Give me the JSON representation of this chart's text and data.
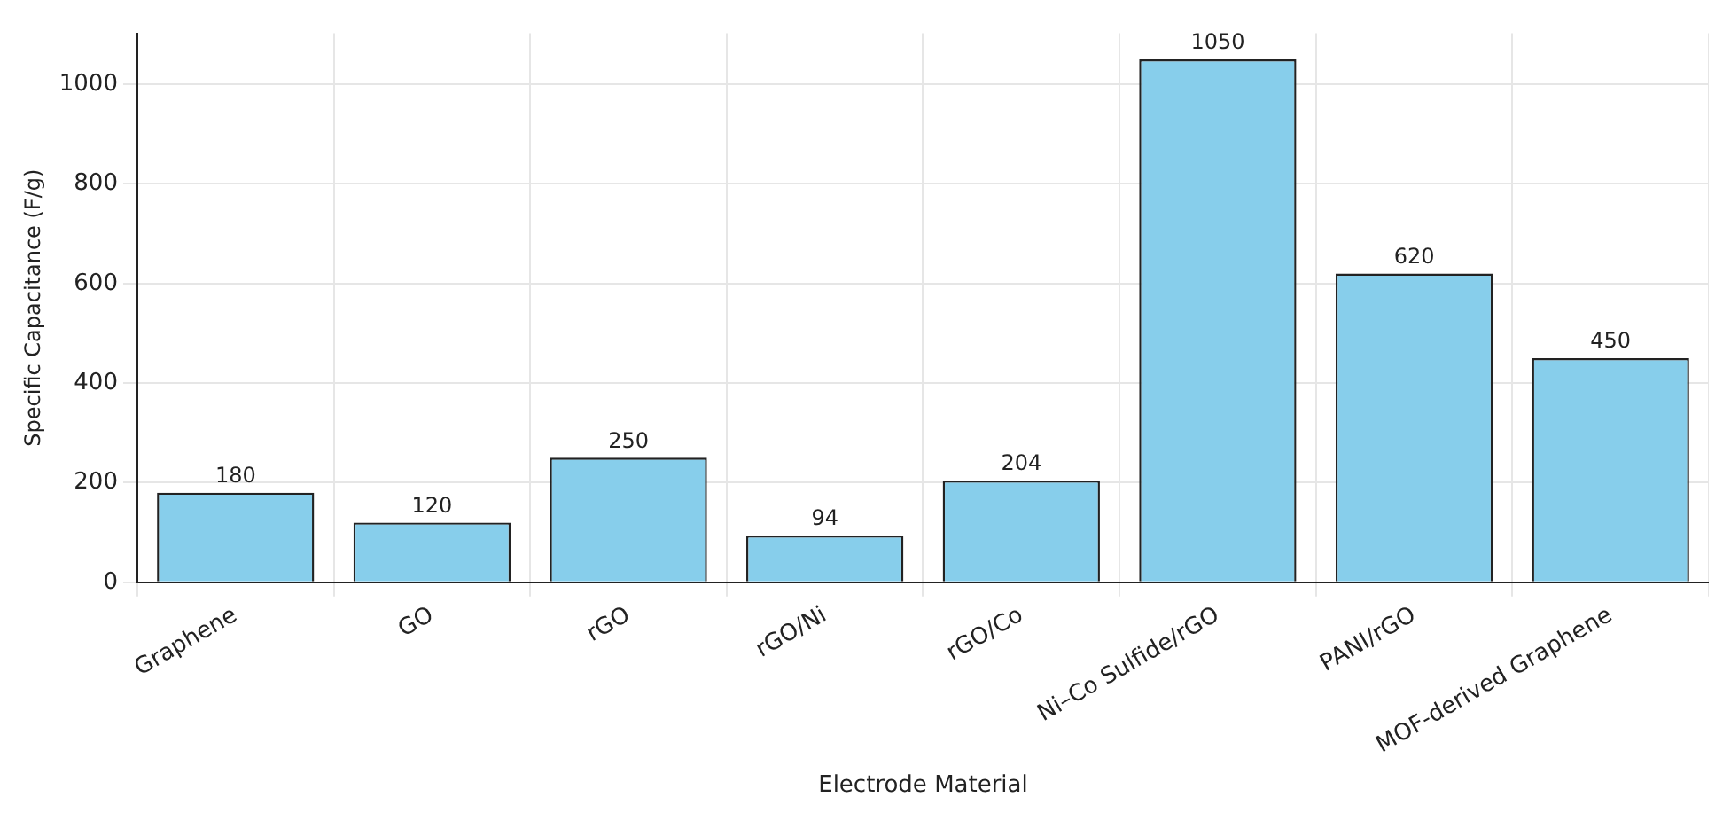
{
  "chart_data": {
    "type": "bar",
    "xlabel": "Electrode Material",
    "ylabel": "Specific Capacitance (F/g)",
    "categories": [
      "Graphene",
      "GO",
      "rGO",
      "rGO/Ni",
      "rGO/Co",
      "Ni–Co Sulfide/rGO",
      "PANI/rGO",
      "MOF-derived Graphene"
    ],
    "values": [
      180,
      120,
      250,
      94,
      204,
      1050,
      620,
      450
    ],
    "color": "#87ceeb",
    "ylim": [
      0,
      1102.5
    ],
    "yticks": [
      0,
      200,
      400,
      600,
      800,
      1000
    ],
    "grid": true,
    "data_labels": true,
    "legend": false
  }
}
